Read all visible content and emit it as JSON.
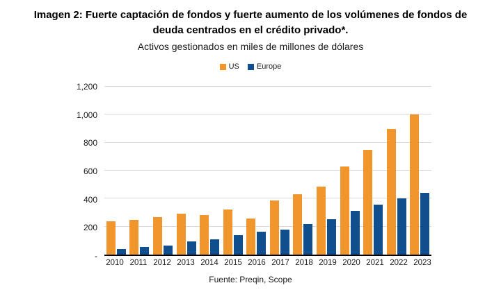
{
  "header": {
    "title": "Imagen 2: Fuerte captación de fondos y fuerte aumento de los volúmenes de fondos de deuda centrados en el crédito privado*.",
    "subtitle": "Activos gestionados en miles de millones de dólares"
  },
  "source": "Fuente: Preqin, Scope",
  "colors": {
    "us_orange": "#F0962D",
    "europe_blue": "#114E8E",
    "gridline": "#D9D9D9",
    "axis": "#000000"
  },
  "chart_data": {
    "type": "bar",
    "title": "Imagen 2: Fuerte captación de fondos y fuerte aumento de los volúmenes de fondos de deuda centrados en el crédito privado*.",
    "subtitle": "Activos gestionados en miles de millones de dólares",
    "xlabel": "",
    "ylabel": "",
    "categories": [
      "2010",
      "2011",
      "2012",
      "2013",
      "2014",
      "2015",
      "2016",
      "2017",
      "2018",
      "2019",
      "2020",
      "2021",
      "2022",
      "2023"
    ],
    "series": [
      {
        "name": "US",
        "color": "#F0962D",
        "values": [
          240,
          250,
          270,
          295,
          285,
          320,
          260,
          385,
          430,
          485,
          630,
          750,
          900,
          1000
        ]
      },
      {
        "name": "Europe",
        "color": "#114E8E",
        "values": [
          40,
          55,
          65,
          95,
          110,
          140,
          165,
          180,
          220,
          255,
          310,
          355,
          400,
          440
        ]
      }
    ],
    "ylim": [
      0,
      1200
    ],
    "yticks": [
      {
        "value": 0,
        "label": "-"
      },
      {
        "value": 200,
        "label": "200"
      },
      {
        "value": 400,
        "label": "400"
      },
      {
        "value": 600,
        "label": "600"
      },
      {
        "value": 800,
        "label": "800"
      },
      {
        "value": 1000,
        "label": "1,000"
      },
      {
        "value": 1200,
        "label": "1,200"
      }
    ],
    "grid": true,
    "legend_position": "top",
    "source": "Fuente: Preqin, Scope"
  }
}
